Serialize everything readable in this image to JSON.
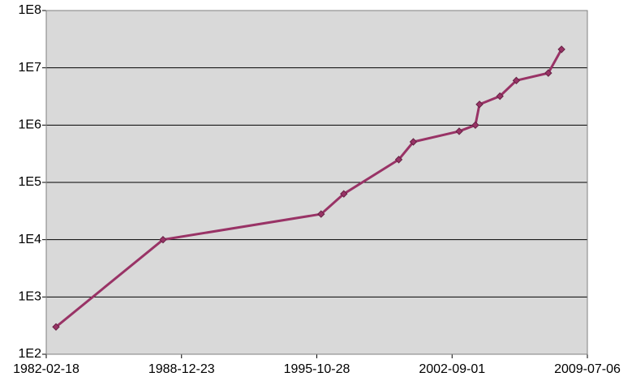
{
  "chart_data": {
    "type": "line",
    "x": [
      "1982-08-17",
      "1988-01-16",
      "1996-01-15",
      "1997-03-10",
      "1999-12-20",
      "2000-09-15",
      "2003-01-10",
      "2003-11-05",
      "2004-01-20",
      "2005-02-01",
      "2005-12-01",
      "2007-07-15",
      "2008-03-15"
    ],
    "values": [
      300,
      10000,
      28000,
      63000,
      250000,
      510000,
      780000,
      1000000,
      2300000,
      3200000,
      6000000,
      8100000,
      21000000
    ],
    "color": "#993366",
    "marker_color": "#662244",
    "log_y": true,
    "xlim": [
      "1982-02-18",
      "2009-07-06"
    ],
    "xticks": [
      "1982-02-18",
      "1988-12-23",
      "1995-10-28",
      "2002-09-01",
      "2009-07-06"
    ],
    "ylim": [
      100,
      100000000
    ],
    "yticks": [
      {
        "value": 100,
        "label": "1E2"
      },
      {
        "value": 1000,
        "label": "1E3"
      },
      {
        "value": 10000,
        "label": "1E4"
      },
      {
        "value": 100000,
        "label": "1E5"
      },
      {
        "value": 1000000,
        "label": "1E6"
      },
      {
        "value": 10000000,
        "label": "1E7"
      },
      {
        "value": 100000000,
        "label": "1E8"
      }
    ],
    "grid": true,
    "background": "#d9d9d9"
  }
}
